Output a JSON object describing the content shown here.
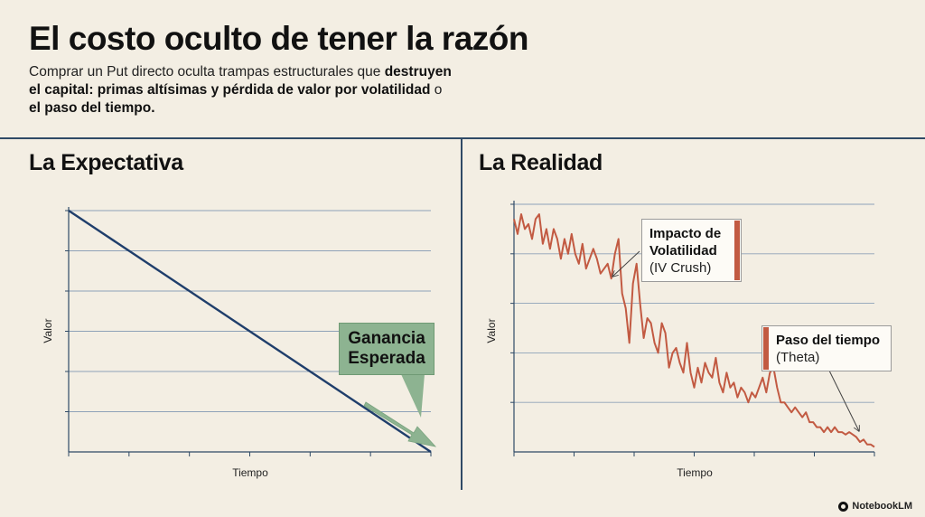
{
  "header": {
    "title": "El costo oculto de tener la razón",
    "subtitle_plain_1": "Comprar un Put directo oculta trampas estructurales que ",
    "subtitle_bold_1": "destruyen el capital: primas altísimas y pérdida de valor por volatilidad",
    "subtitle_plain_2": " o ",
    "subtitle_bold_2": "el paso del tiempo."
  },
  "chart_data": [
    {
      "type": "line",
      "title": "La Expectativa",
      "xlabel": "Tiempo",
      "ylabel": "Valor",
      "xlim": [
        0,
        6
      ],
      "ylim": [
        0,
        6
      ],
      "grid": true,
      "series": [
        {
          "x": [
            0,
            6
          ],
          "values": [
            6,
            0
          ]
        }
      ],
      "annotations": [
        {
          "text": "Ganancia Esperada",
          "line1": "Ganancia",
          "line2": "Esperada"
        }
      ],
      "color": "#1f3e6b",
      "arrow_color": "#8db391"
    },
    {
      "type": "line",
      "title": "La Realidad",
      "xlabel": "Tiempo",
      "ylabel": "Valor",
      "xlim": [
        0,
        6
      ],
      "ylim": [
        0,
        5
      ],
      "grid": true,
      "series": [
        {
          "x": [
            0,
            0.06,
            0.12,
            0.18,
            0.24,
            0.3,
            0.36,
            0.42,
            0.48,
            0.54,
            0.6,
            0.66,
            0.72,
            0.78,
            0.84,
            0.9,
            0.96,
            1.02,
            1.08,
            1.14,
            1.2,
            1.26,
            1.32,
            1.38,
            1.44,
            1.5,
            1.56,
            1.62,
            1.68,
            1.74,
            1.8,
            1.86,
            1.92,
            1.98,
            2.04,
            2.1,
            2.16,
            2.22,
            2.28,
            2.34,
            2.4,
            2.46,
            2.52,
            2.58,
            2.64,
            2.7,
            2.76,
            2.82,
            2.88,
            2.94,
            3.0,
            3.06,
            3.12,
            3.18,
            3.24,
            3.3,
            3.36,
            3.42,
            3.48,
            3.54,
            3.6,
            3.66,
            3.72,
            3.78,
            3.84,
            3.9,
            3.96,
            4.02,
            4.08,
            4.14,
            4.2,
            4.26,
            4.32,
            4.38,
            4.44,
            4.5,
            4.56,
            4.62,
            4.68,
            4.74,
            4.8,
            4.86,
            4.92,
            4.98,
            5.04,
            5.1,
            5.16,
            5.22,
            5.28,
            5.34,
            5.4,
            5.46,
            5.52,
            5.58,
            5.64,
            5.7,
            5.76,
            5.82,
            5.88,
            5.94,
            6.0
          ],
          "values": [
            4.7,
            4.4,
            4.8,
            4.5,
            4.6,
            4.3,
            4.7,
            4.8,
            4.2,
            4.5,
            4.1,
            4.5,
            4.3,
            3.9,
            4.3,
            4.0,
            4.4,
            4.0,
            3.8,
            4.2,
            3.7,
            3.9,
            4.1,
            3.9,
            3.6,
            3.7,
            3.8,
            3.5,
            4.0,
            4.3,
            3.2,
            2.9,
            2.2,
            3.4,
            3.8,
            3.0,
            2.3,
            2.7,
            2.6,
            2.2,
            2.0,
            2.6,
            2.4,
            1.7,
            2.0,
            2.1,
            1.8,
            1.6,
            2.2,
            1.6,
            1.3,
            1.7,
            1.4,
            1.8,
            1.6,
            1.5,
            1.9,
            1.4,
            1.2,
            1.6,
            1.3,
            1.4,
            1.1,
            1.3,
            1.2,
            1.0,
            1.2,
            1.1,
            1.3,
            1.5,
            1.2,
            1.6,
            1.7,
            1.3,
            1.0,
            1.0,
            0.9,
            0.8,
            0.9,
            0.8,
            0.7,
            0.8,
            0.6,
            0.6,
            0.5,
            0.5,
            0.4,
            0.5,
            0.4,
            0.5,
            0.4,
            0.4,
            0.35,
            0.4,
            0.35,
            0.3,
            0.2,
            0.25,
            0.15,
            0.15,
            0.1
          ]
        }
      ],
      "annotations": [
        {
          "line1": "Impacto de",
          "line2": "Volatilidad",
          "line3": "(IV Crush)"
        },
        {
          "line1": "Paso del tiempo",
          "line2": "(Theta)"
        }
      ],
      "color": "#c25a42"
    }
  ],
  "brand": {
    "name": "NotebookLM"
  }
}
